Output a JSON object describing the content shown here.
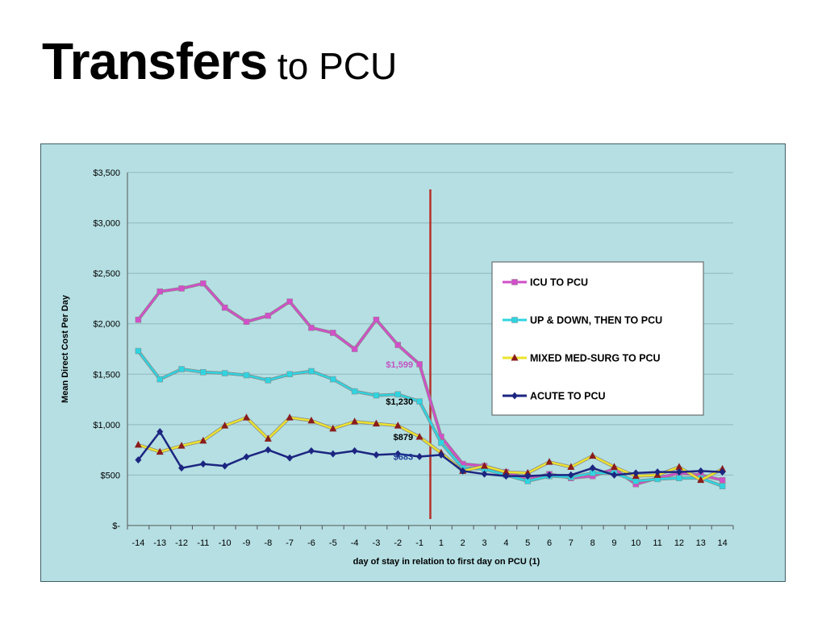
{
  "slide": {
    "title_bold": "Transfers",
    "title_rest": " to PCU"
  },
  "chart_data": {
    "type": "line",
    "title": "",
    "xlabel": "day of stay in relation to first day on PCU (1)",
    "ylabel": "Mean Direct Cost Per Day",
    "x": [
      -14,
      -13,
      -12,
      -11,
      -10,
      -9,
      -8,
      -7,
      -6,
      -5,
      -4,
      -3,
      -2,
      -1,
      1,
      2,
      3,
      4,
      5,
      6,
      7,
      8,
      9,
      10,
      11,
      12,
      13,
      14
    ],
    "ylim": [
      0,
      3500
    ],
    "ytick_values": [
      0,
      500,
      1000,
      1500,
      2000,
      2500,
      3000,
      3500
    ],
    "ytick_labels": [
      "$-",
      "$500",
      "$1,000",
      "$1,500",
      "$2,000",
      "$2,500",
      "$3,000",
      "$3,500"
    ],
    "grid": "horizontal",
    "legend_position": "right",
    "vertical_marker_between": [
      -1,
      1
    ],
    "vertical_marker_color": "#b5302a",
    "series": [
      {
        "name": "ICU TO PCU",
        "color": "#d24fc9",
        "marker": "square",
        "values": [
          2040,
          2320,
          2350,
          2400,
          2160,
          2020,
          2080,
          2220,
          1960,
          1910,
          1750,
          2040,
          1790,
          1599,
          880,
          610,
          590,
          530,
          460,
          510,
          470,
          490,
          560,
          410,
          470,
          520,
          500,
          450
        ]
      },
      {
        "name": "UP & DOWN, THEN TO PCU",
        "color": "#2fd4e0",
        "marker": "square",
        "values": [
          1730,
          1450,
          1550,
          1520,
          1510,
          1490,
          1440,
          1500,
          1530,
          1450,
          1330,
          1290,
          1300,
          1230,
          820,
          570,
          560,
          500,
          440,
          490,
          480,
          520,
          520,
          440,
          460,
          470,
          470,
          390
        ]
      },
      {
        "name": "MIXED MED-SURG TO PCU",
        "color": "#ece32e",
        "marker": "triangle",
        "values": [
          800,
          730,
          790,
          840,
          990,
          1070,
          860,
          1070,
          1040,
          960,
          1030,
          1010,
          990,
          879,
          720,
          540,
          590,
          530,
          520,
          630,
          580,
          690,
          580,
          490,
          500,
          580,
          450,
          560
        ]
      },
      {
        "name": "ACUTE TO PCU",
        "color": "#1c2580",
        "marker": "diamond",
        "values": [
          650,
          930,
          570,
          610,
          590,
          680,
          750,
          670,
          740,
          710,
          740,
          700,
          710,
          683,
          700,
          540,
          510,
          490,
          490,
          500,
          500,
          570,
          500,
          520,
          530,
          530,
          540,
          530
        ]
      }
    ],
    "annotations": [
      {
        "text": "$1,599",
        "series": 0,
        "index": 13,
        "color": "#c254c4"
      },
      {
        "text": "$1,230",
        "series": 1,
        "index": 13,
        "color": "#000000"
      },
      {
        "text": "$879",
        "series": 2,
        "index": 13,
        "color": "#000000"
      },
      {
        "text": "$683",
        "series": 3,
        "index": 13,
        "color": "#1f3f9a"
      }
    ]
  }
}
